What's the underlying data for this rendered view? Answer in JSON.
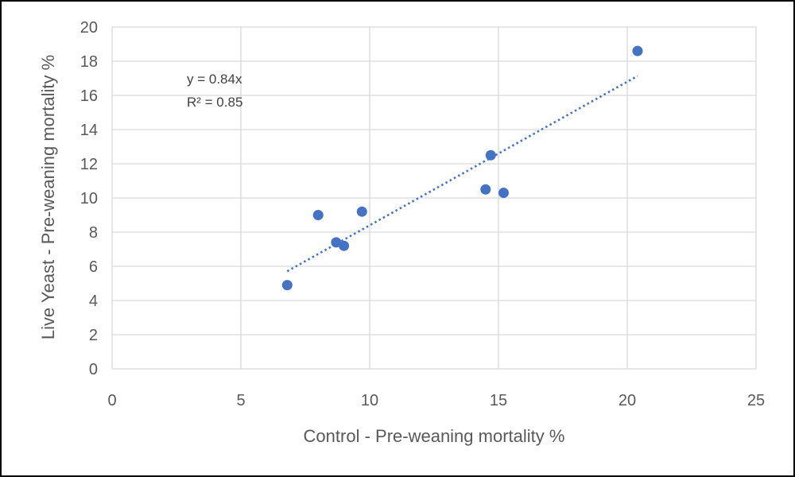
{
  "chart_data": {
    "type": "scatter",
    "title": "",
    "xlabel": "Control - Pre-weaning mortality %",
    "ylabel": "Live Yeast - Pre-weaning mortality %",
    "xlim": [
      0,
      25
    ],
    "ylim": [
      0,
      20
    ],
    "x_ticks": [
      0,
      5,
      10,
      15,
      20,
      25
    ],
    "y_ticks": [
      0,
      2,
      4,
      6,
      8,
      10,
      12,
      14,
      16,
      18,
      20
    ],
    "grid": true,
    "legend": "none",
    "marker_color": "#4472C4",
    "trendline_color": "#4472C4",
    "series": [
      {
        "points": [
          {
            "x": 6.8,
            "y": 4.9
          },
          {
            "x": 8.0,
            "y": 9.0
          },
          {
            "x": 8.7,
            "y": 7.4
          },
          {
            "x": 9.0,
            "y": 7.2
          },
          {
            "x": 9.7,
            "y": 9.2
          },
          {
            "x": 14.5,
            "y": 10.5
          },
          {
            "x": 14.7,
            "y": 12.5
          },
          {
            "x": 15.2,
            "y": 10.3
          },
          {
            "x": 20.4,
            "y": 18.6
          }
        ]
      }
    ],
    "trendline": {
      "type": "linear",
      "slope": 0.84,
      "intercept": 0,
      "x_range": [
        6.8,
        20.4
      ]
    },
    "annotations": [
      "y = 0.84x",
      "R² = 0.85"
    ]
  }
}
